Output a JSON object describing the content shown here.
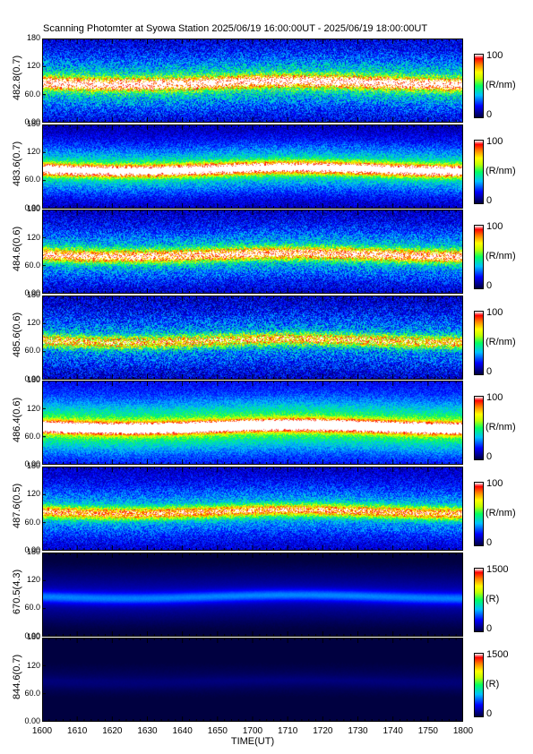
{
  "chart_data": {
    "type": "heatmap",
    "title": "Scanning Photomter at Syowa Station 2025/06/19 16:00:00UT - 2025/06/19 18:00:00UT",
    "xlabel": "TIME(UT)",
    "x_ticks": [
      "1600",
      "1610",
      "1620",
      "1630",
      "1640",
      "1650",
      "1700",
      "1710",
      "1720",
      "1730",
      "1740",
      "1750",
      "1800"
    ],
    "y_ticks": [
      "180",
      "120",
      "60.0",
      "0.00"
    ],
    "ylim": [
      0,
      180
    ],
    "panels": [
      {
        "label": "482.8(0.7)",
        "cbar_max": "100",
        "cbar_min": "0",
        "unit": "(R/nm)",
        "band_y": 86,
        "band_strength": 0.75,
        "noise": 0.55,
        "bg": 0.22
      },
      {
        "label": "483.6(0.7)",
        "cbar_max": "100",
        "cbar_min": "0",
        "unit": "(R/nm)",
        "band_y": 85,
        "band_strength": 0.85,
        "noise": 0.35,
        "bg": 0.18
      },
      {
        "label": "484.6(0.6)",
        "cbar_max": "100",
        "cbar_min": "0",
        "unit": "(R/nm)",
        "band_y": 84,
        "band_strength": 0.65,
        "noise": 0.5,
        "bg": 0.2
      },
      {
        "label": "485.6(0.6)",
        "cbar_max": "100",
        "cbar_min": "0",
        "unit": "(R/nm)",
        "band_y": 84,
        "band_strength": 0.5,
        "noise": 0.6,
        "bg": 0.2
      },
      {
        "label": "486.4(0.6)",
        "cbar_max": "100",
        "cbar_min": "0",
        "unit": "(R/nm)",
        "band_y": 82,
        "band_strength": 0.95,
        "noise": 0.3,
        "bg": 0.25
      },
      {
        "label": "487.6(0.5)",
        "cbar_max": "100",
        "cbar_min": "0",
        "unit": "(R/nm)",
        "band_y": 84,
        "band_strength": 0.55,
        "noise": 0.4,
        "bg": 0.2
      },
      {
        "label": "670.5(4.3)",
        "cbar_max": "1500",
        "cbar_min": "0",
        "unit": "(R)",
        "band_y": 86,
        "band_strength": 0.18,
        "noise": 0.03,
        "bg": 0.06
      },
      {
        "label": "844.6(0.7)",
        "cbar_max": "1500",
        "cbar_min": "0",
        "unit": "(R)",
        "band_y": 85,
        "band_strength": 0.02,
        "noise": 0.02,
        "bg": 0.03
      }
    ]
  }
}
